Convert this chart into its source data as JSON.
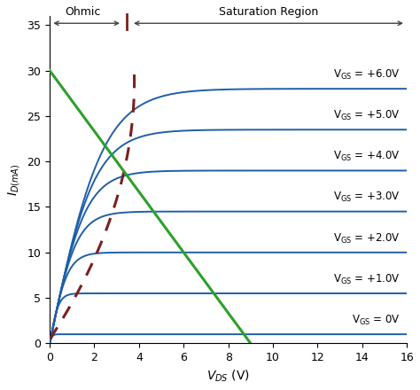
{
  "vds_max": 16,
  "id_max": 36,
  "vgs_values": [
    0,
    1,
    2,
    3,
    4,
    5,
    6
  ],
  "id_sat": [
    1.0,
    5.5,
    10.0,
    14.5,
    19.0,
    23.5,
    28.0
  ],
  "vgs_knee": [
    0.3,
    1.0,
    2.0,
    3.0,
    4.0,
    5.0,
    6.0
  ],
  "curve_color": "#1e5fa8",
  "load_line_color": "#2ca02c",
  "load_line_x0": 0,
  "load_line_y0": 30,
  "load_line_x1": 9.0,
  "load_line_y1": 0,
  "boundary_color": "#7b2020",
  "title_ohmic": "Ohmic",
  "title_sat": "Saturation Region",
  "xlabel": "V_{DS} (V)",
  "ylabel": "I_{D(mA)}",
  "xticks": [
    0,
    2,
    4,
    6,
    8,
    10,
    12,
    14,
    16
  ],
  "yticks": [
    0,
    5,
    10,
    15,
    20,
    25,
    30,
    35
  ],
  "bg_color": "#ffffff",
  "arrow_color": "#444444",
  "label_fontsize": 8.5,
  "figsize": [
    4.74,
    4.4
  ],
  "dpi": 100
}
